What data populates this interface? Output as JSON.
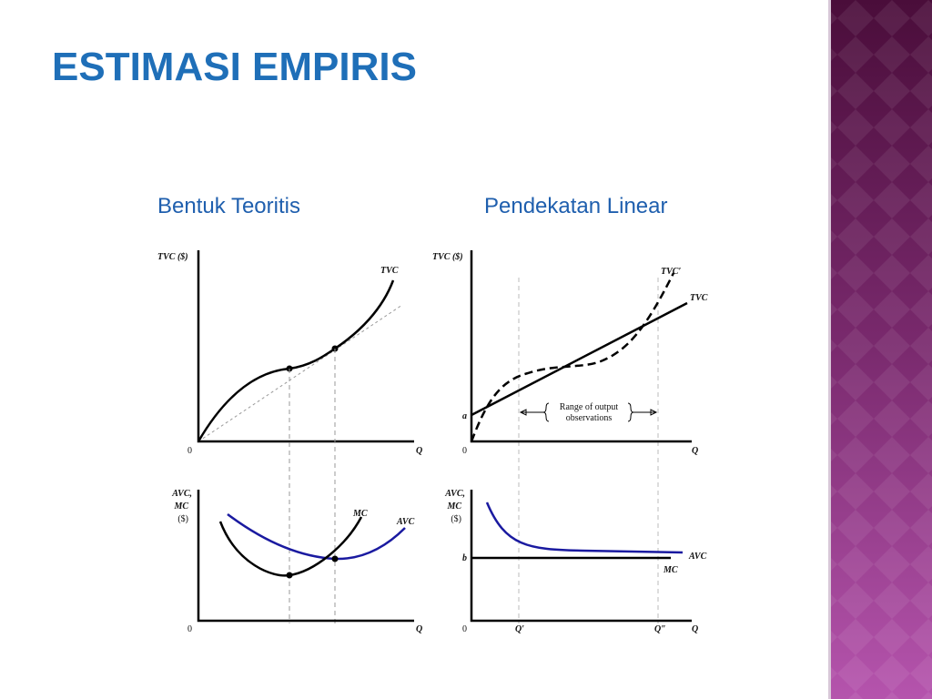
{
  "title": "ESTIMASI EMPIRIS",
  "left": {
    "heading": "Bentuk Teoritis",
    "top": {
      "y_label": "TVC ($)",
      "curve_label": "TVC",
      "origin": "0",
      "x_label": "Q"
    },
    "bottom": {
      "y_label": [
        "AVC,",
        "MC",
        "($)"
      ],
      "mc_label": "MC",
      "avc_label": "AVC",
      "origin": "0",
      "x_label": "Q"
    }
  },
  "right": {
    "heading": "Pendekatan Linear",
    "top": {
      "y_label": "TVC ($)",
      "tvc_prime_label": "TVC′",
      "tvc_label": "TVC",
      "intercept": "a",
      "origin": "0",
      "x_label": "Q",
      "range_label": [
        "Range of output",
        "observations"
      ]
    },
    "bottom": {
      "y_label": [
        "AVC,",
        "MC",
        "($)"
      ],
      "intercept": "b",
      "avc_label": "AVC",
      "mc_label": "MC",
      "origin": "0",
      "x_label": "Q",
      "q_low": "Q′",
      "q_high": "Q″"
    }
  }
}
